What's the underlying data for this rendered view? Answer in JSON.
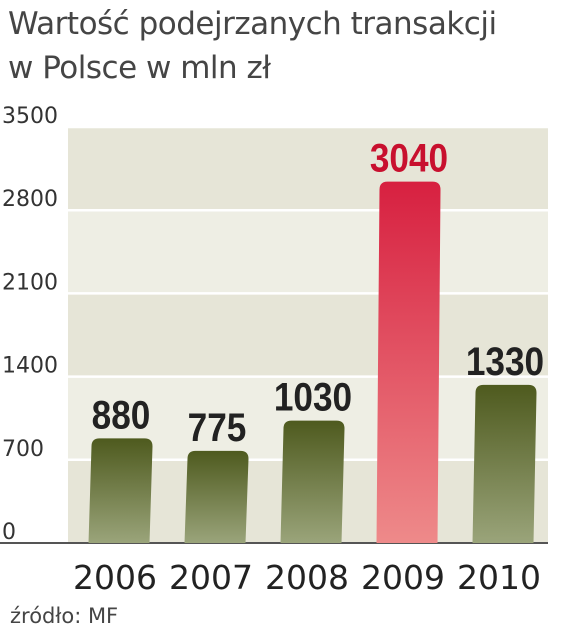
{
  "title": {
    "line1": "Wartość podejrzanych transakcji",
    "line2": "w Polsce w mln zł"
  },
  "source": "źródło: MF",
  "colors": {
    "bar_top": "#4e5a1e",
    "bar_bottom": "#9aa47a",
    "highlight_top": "#d72040",
    "highlight_bottom": "#ee8a8a",
    "highlight_label": "#c8102e",
    "label": "#222222",
    "band": "#e6e5d7",
    "band_alt": "#eeeee4",
    "axis_text": "#333333"
  },
  "chart_data": {
    "type": "bar",
    "title": "Wartość podejrzanych transakcji w Polsce w mln zł",
    "categories": [
      "2006",
      "2007",
      "2008",
      "2009",
      "2010"
    ],
    "values": [
      880,
      775,
      1030,
      3040,
      1330
    ],
    "value_labels": [
      "880",
      "775",
      "1030",
      "3040",
      "1330"
    ],
    "highlight_index": 3,
    "ylim": [
      0,
      3500
    ],
    "yticks": [
      0,
      700,
      1400,
      2100,
      2800,
      3500
    ],
    "ytick_labels": [
      "0",
      "700",
      "1400",
      "2100",
      "2800",
      "3500"
    ],
    "xlabel": "",
    "ylabel": "",
    "grid": true,
    "legend": "none"
  }
}
